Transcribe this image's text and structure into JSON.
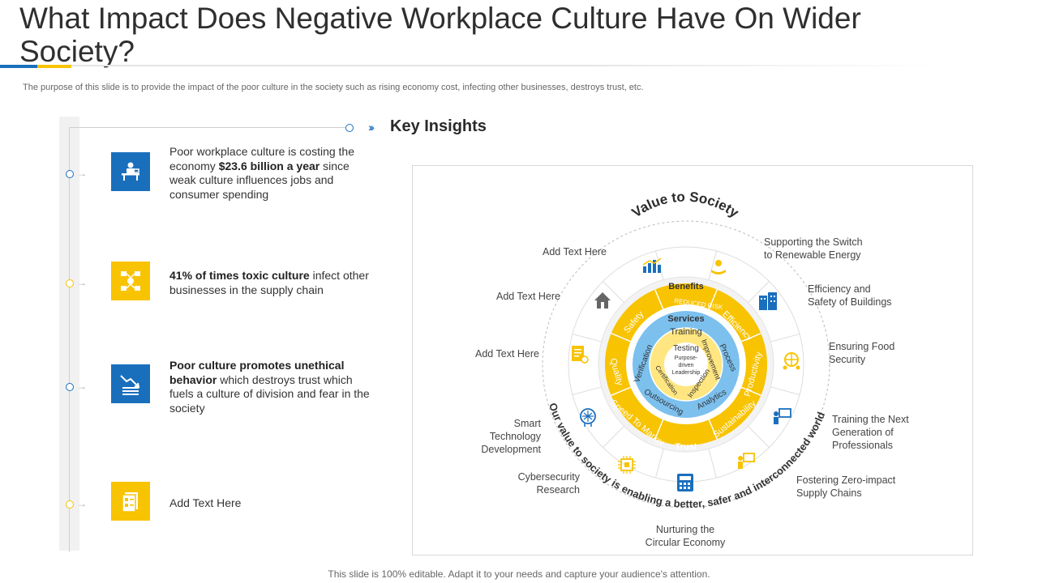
{
  "title": "What Impact Does Negative Workplace Culture Have On Wider Society?",
  "subtitle": "The purpose of this slide is to provide the impact of the poor culture in the society such as rising economy cost, infecting other businesses, destroys trust, etc.",
  "key_insights_heading": "Key Insights",
  "insights": [
    {
      "pre": "Poor workplace culture is costing the economy ",
      "bold": "$23.6 billion a year",
      "post": " since weak culture influences jobs and consumer spending",
      "icon": "desk-worker-icon"
    },
    {
      "pre": "",
      "bold": "41% of times toxic culture",
      "post": " infect other businesses in the supply chain",
      "icon": "network-icon"
    },
    {
      "pre": "",
      "bold": "Poor culture promotes unethical behavior",
      "post": " which destroys trust which fuels a culture of division and fear in the society",
      "icon": "declining-chart-icon"
    },
    {
      "pre": "Add Text Here",
      "bold": "",
      "post": "",
      "icon": "document-icon"
    }
  ],
  "diagram": {
    "arc_title": "Value to Society",
    "arc_bottom": "Our value to society is enabling a better, safer and interconnected world",
    "center": [
      "Purpose-",
      "driven",
      "Leadership"
    ],
    "inner_ring": [
      "Testing",
      "Improvement",
      "Inspection",
      "Certification"
    ],
    "blue_ring": [
      "Training",
      "Process",
      "Analytics",
      "Outsourcing",
      "Verification"
    ],
    "services_label": "Services",
    "benefits_label": "Benefits",
    "yellow_ring": [
      "REDUCED RISK",
      "Efficiency",
      "Productivity",
      "Sustainability",
      "Trust",
      "Speed To Market",
      "Quality",
      "Safety"
    ],
    "labels": {
      "top_left": "Add Text Here",
      "left1": "Add Text Here",
      "left2": "Add Text Here",
      "smart": [
        "Smart",
        "Technology",
        "Development"
      ],
      "cyber": [
        "Cybersecurity",
        "Research"
      ],
      "nurturing": [
        "Nurturing the",
        "Circular Economy"
      ],
      "fostering": [
        "Fostering Zero-impact",
        "Supply Chains"
      ],
      "training": [
        "Training the Next",
        "Generation of",
        "Professionals"
      ],
      "food": [
        "Ensuring Food",
        "Security"
      ],
      "efficiency": [
        "Efficiency and",
        "Safety of Buildings"
      ],
      "switch": [
        "Supporting the Switch",
        "to Renewable  Energy"
      ]
    }
  },
  "footer": "This slide is 100% editable. Adapt it to your needs and capture your audience's attention.",
  "colors": {
    "blue": "#1a6fbd",
    "yellow": "#f8c300",
    "light_blue": "#7cc0ee",
    "pale_yellow": "#ffe680"
  }
}
